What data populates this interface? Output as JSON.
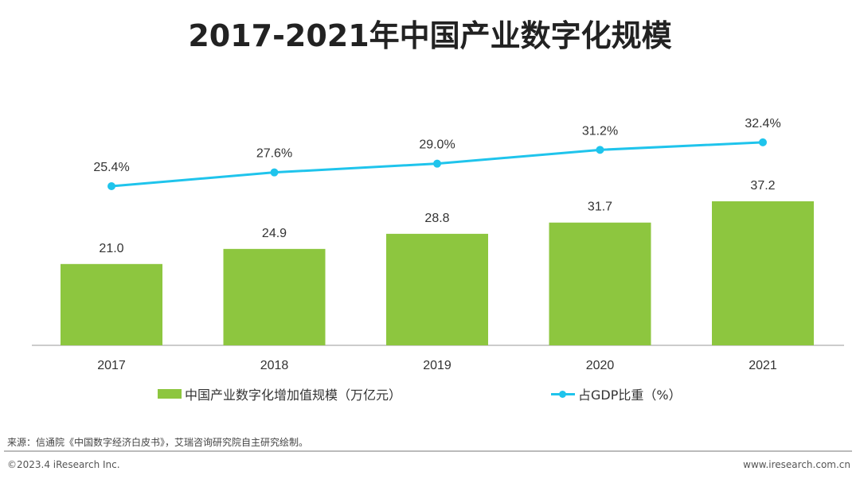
{
  "chart_data": {
    "type": "bar+line",
    "title": "2017-2021年中国产业数字化规模",
    "categories": [
      "2017",
      "2018",
      "2019",
      "2020",
      "2021"
    ],
    "series": [
      {
        "name": "中国产业数字化增加值规模（万亿元）",
        "type": "bar",
        "values": [
          21.0,
          24.9,
          28.8,
          31.7,
          37.2
        ],
        "labels": [
          "21.0",
          "24.9",
          "28.8",
          "31.7",
          "37.2"
        ],
        "color": "#8dc63f"
      },
      {
        "name": "占GDP比重（%）",
        "type": "line",
        "values": [
          25.4,
          27.6,
          29.0,
          31.2,
          32.4
        ],
        "labels": [
          "25.4%",
          "27.6%",
          "29.0%",
          "31.2%",
          "32.4%"
        ],
        "color": "#1fc4ec"
      }
    ],
    "legend": "bottom",
    "grid": false
  },
  "footer": {
    "source": "来源：信通院《中国数字经济白皮书》，艾瑞咨询研究院自主研究绘制。",
    "copyright": "©2023.4 iResearch Inc.",
    "site": "www.iresearch.com.cn"
  }
}
